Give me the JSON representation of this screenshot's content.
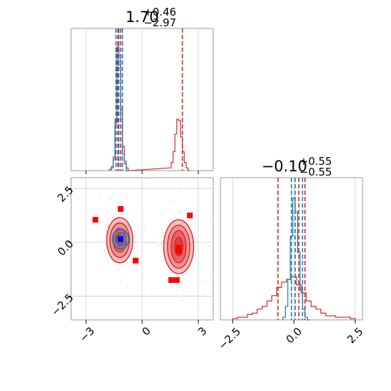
{
  "colors": {
    "red": "#d62728",
    "blue": "#1f77b4",
    "grid": "#cccccc",
    "marker_red": "#ff0000",
    "marker_blue": "#0000ff"
  },
  "chart_data": {
    "type": "corner",
    "panels": [
      {
        "id": "param1-histogram",
        "type": "histogram",
        "title": {
          "value": "1.70",
          "sup": "+0.46",
          "sub": "−2.97"
        },
        "xlim": [
          -3.8,
          3.8
        ],
        "ylim": [
          0,
          1.0
        ],
        "grid": true,
        "series": [
          {
            "name": "",
            "color": "#d62728",
            "bins": [
              [
                -1.7,
                0.01
              ],
              [
                -1.6,
                0.03
              ],
              [
                -1.5,
                0.1
              ],
              [
                -1.4,
                0.38
              ],
              [
                -1.3,
                0.92
              ],
              [
                -1.2,
                0.78
              ],
              [
                -1.1,
                0.45
              ],
              [
                -1.0,
                0.18
              ],
              [
                -0.9,
                0.07
              ],
              [
                -0.8,
                0.02
              ],
              [
                -0.7,
                0.0
              ],
              [
                1.5,
                0.02
              ],
              [
                1.6,
                0.06
              ],
              [
                1.7,
                0.14
              ],
              [
                1.8,
                0.27
              ],
              [
                1.9,
                0.38
              ],
              [
                2.0,
                0.37
              ],
              [
                2.1,
                0.25
              ],
              [
                2.2,
                0.14
              ],
              [
                2.3,
                0.06
              ],
              [
                2.4,
                0.02
              ],
              [
                2.5,
                0.0
              ]
            ],
            "bin_width": 0.1,
            "quantiles": [
              -1.3,
              -1.15,
              2.15
            ]
          },
          {
            "name": "",
            "color": "#1f77b4",
            "bins": [
              [
                -1.6,
                0.02
              ],
              [
                -1.5,
                0.08
              ],
              [
                -1.4,
                0.35
              ],
              [
                -1.3,
                0.9
              ],
              [
                -1.2,
                0.85
              ],
              [
                -1.1,
                0.38
              ],
              [
                -1.0,
                0.12
              ],
              [
                -0.9,
                0.05
              ],
              [
                -0.8,
                0.0
              ]
            ],
            "bin_width": 0.1,
            "quantiles": [
              -1.4,
              -1.25,
              -1.05
            ]
          }
        ]
      },
      {
        "id": "param1-vs-param2-contour",
        "type": "contour",
        "xlim": [
          -3.8,
          3.8
        ],
        "ylim": [
          -3.6,
          3.0
        ],
        "xticks": [
          -3,
          0,
          3
        ],
        "xtick_labels": [
          "−3",
          "0",
          "3"
        ],
        "yticks": [
          2.5,
          0.0,
          -2.5
        ],
        "ytick_labels": [
          "2.5",
          "0.0",
          "−2.5"
        ],
        "grid": true,
        "red_modes": [
          {
            "center": [
              -1.2,
              0.1
            ],
            "levels": [
              [
                1.4,
                2.1
              ],
              [
                1.05,
                1.6
              ],
              [
                0.7,
                1.1
              ],
              [
                0.35,
                0.55
              ]
            ]
          },
          {
            "center": [
              1.95,
              -0.2
            ],
            "levels": [
              [
                1.6,
                2.5
              ],
              [
                1.2,
                2.0
              ],
              [
                0.8,
                1.5
              ],
              [
                0.45,
                0.85
              ]
            ]
          }
        ],
        "blue_mode": {
          "center": [
            -1.15,
            0.15
          ],
          "levels": [
            [
              0.85,
              0.9
            ],
            [
              0.55,
              0.6
            ],
            [
              0.28,
              0.32
            ]
          ]
        },
        "red_markers": [
          [
            -2.5,
            1.05
          ],
          [
            -1.15,
            1.55
          ],
          [
            -0.35,
            -0.85
          ],
          [
            2.55,
            1.25
          ],
          [
            1.55,
            -1.75
          ],
          [
            1.85,
            -1.75
          ],
          [
            1.95,
            -0.25
          ],
          [
            1.95,
            -0.4
          ]
        ],
        "blue_markers": [
          [
            -1.15,
            0.15
          ]
        ]
      },
      {
        "id": "param2-histogram",
        "type": "histogram",
        "title": {
          "value": "−0.10",
          "sup": "+0.55",
          "sub": "−0.55"
        },
        "xlim": [
          -3.0,
          2.8
        ],
        "ylim": [
          0,
          1.0
        ],
        "xticks": [
          -2.5,
          0.0,
          2.5
        ],
        "xtick_labels": [
          "−2.5",
          "0.0",
          "2.5"
        ],
        "grid": true,
        "series": [
          {
            "name": "",
            "color": "#d62728",
            "bins": [
              [
                -2.4,
                0.01
              ],
              [
                -2.2,
                0.02
              ],
              [
                -2.0,
                0.02
              ],
              [
                -1.8,
                0.04
              ],
              [
                -1.6,
                0.05
              ],
              [
                -1.4,
                0.08
              ],
              [
                -1.2,
                0.1
              ],
              [
                -1.0,
                0.14
              ],
              [
                -0.8,
                0.18
              ],
              [
                -0.6,
                0.24
              ],
              [
                -0.4,
                0.28
              ],
              [
                -0.2,
                0.3
              ],
              [
                0.0,
                0.32
              ],
              [
                0.2,
                0.26
              ],
              [
                0.4,
                0.2
              ],
              [
                0.6,
                0.14
              ],
              [
                0.8,
                0.1
              ],
              [
                1.0,
                0.08
              ],
              [
                1.2,
                0.05
              ],
              [
                1.4,
                0.03
              ],
              [
                1.6,
                0.03
              ],
              [
                1.8,
                0.02
              ],
              [
                2.0,
                0.02
              ],
              [
                2.2,
                0.02
              ],
              [
                2.4,
                0.01
              ]
            ],
            "bin_width": 0.2,
            "quantiles": [
              -0.65,
              0.2,
              0.45
            ]
          },
          {
            "name": "",
            "color": "#1f77b4",
            "bins": [
              [
                -0.4,
                0.02
              ],
              [
                -0.3,
                0.1
              ],
              [
                -0.2,
                0.3
              ],
              [
                -0.1,
                0.62
              ],
              [
                0.0,
                0.9
              ],
              [
                0.1,
                0.8
              ],
              [
                0.2,
                0.5
              ],
              [
                0.3,
                0.22
              ],
              [
                0.4,
                0.08
              ],
              [
                0.5,
                0.02
              ],
              [
                0.6,
                0.0
              ]
            ],
            "bin_width": 0.1,
            "quantiles": [
              -0.1,
              0.05,
              0.35
            ]
          }
        ]
      }
    ]
  }
}
